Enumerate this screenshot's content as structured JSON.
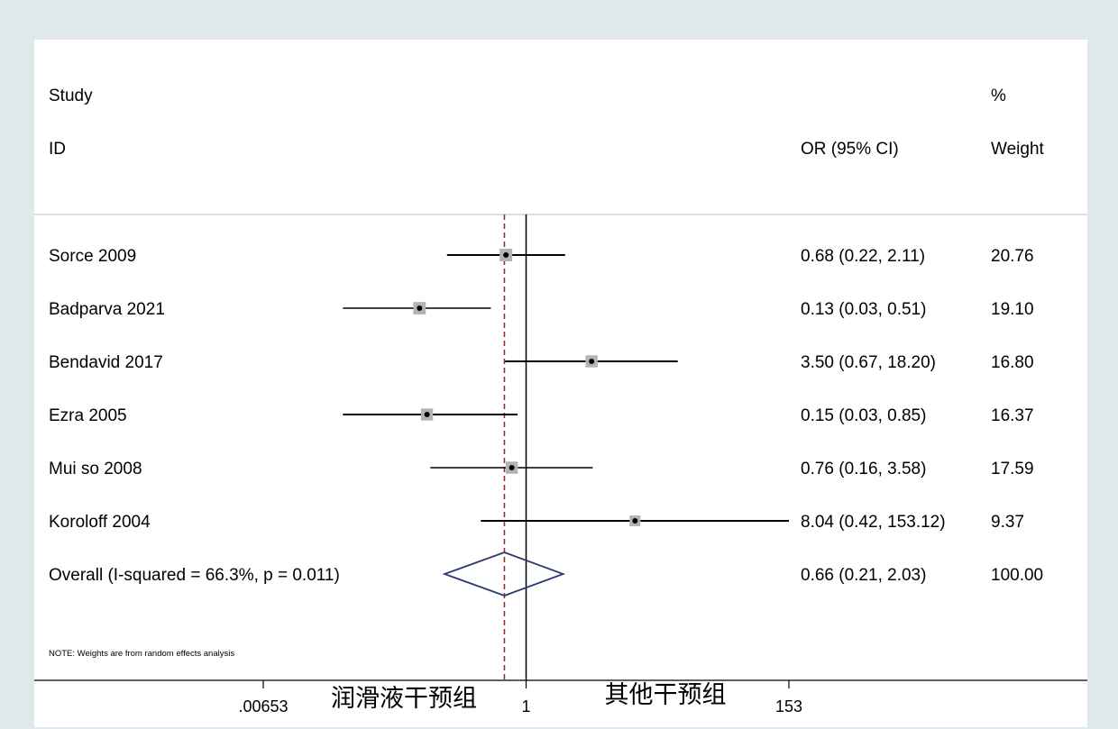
{
  "header": {
    "study_line1": "Study",
    "study_line2": "ID",
    "effect_label": "OR (95% CI)",
    "weight_line1": "%",
    "weight_line2": "Weight"
  },
  "note": "NOTE: Weights are from random effects analysis",
  "footer_labels": {
    "left_group": "润滑液干预组",
    "right_group": "其他干预组"
  },
  "colors": {
    "background": "#dfe8ea",
    "panel": "#ffffff",
    "ci_line": "#000000",
    "weight_box": "#b3b3b3",
    "diamond": "#2e3a75",
    "pooled_dashed_line": "#9b2c2c"
  },
  "chart_data": {
    "type": "forest",
    "scale": "log",
    "null_value": 1,
    "xlim": [
      0.00653,
      153
    ],
    "ticks": [
      {
        "value": 0.00653,
        "label": ".00653"
      },
      {
        "value": 1,
        "label": "1"
      },
      {
        "value": 153,
        "label": "153"
      }
    ],
    "studies": [
      {
        "name": "Sorce 2009",
        "or": 0.68,
        "lo": 0.22,
        "hi": 2.11,
        "ci_text": "0.68 (0.22, 2.11)",
        "weight": 20.76,
        "weight_text": "20.76"
      },
      {
        "name": "Badparva 2021",
        "or": 0.13,
        "lo": 0.03,
        "hi": 0.51,
        "ci_text": "0.13 (0.03, 0.51)",
        "weight": 19.1,
        "weight_text": "19.10"
      },
      {
        "name": "Bendavid 2017",
        "or": 3.5,
        "lo": 0.67,
        "hi": 18.2,
        "ci_text": "3.50 (0.67, 18.20)",
        "weight": 16.8,
        "weight_text": "16.80"
      },
      {
        "name": "Ezra 2005",
        "or": 0.15,
        "lo": 0.03,
        "hi": 0.85,
        "ci_text": "0.15 (0.03, 0.85)",
        "weight": 16.37,
        "weight_text": "16.37"
      },
      {
        "name": "Mui so 2008",
        "or": 0.76,
        "lo": 0.16,
        "hi": 3.58,
        "ci_text": "0.76 (0.16, 3.58)",
        "weight": 17.59,
        "weight_text": "17.59"
      },
      {
        "name": "Koroloff 2004",
        "or": 8.04,
        "lo": 0.42,
        "hi": 153.12,
        "ci_text": "8.04 (0.42, 153.12)",
        "weight": 9.37,
        "weight_text": "9.37"
      }
    ],
    "overall": {
      "label": "Overall  (I-squared = 66.3%, p = 0.011)",
      "or": 0.66,
      "lo": 0.21,
      "hi": 2.03,
      "ci_text": "0.66 (0.21, 2.03)",
      "weight_text": "100.00"
    }
  }
}
